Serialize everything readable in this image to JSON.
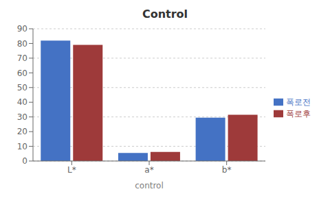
{
  "chart_data": {
    "type": "bar",
    "title": "Control",
    "xlabel": "control",
    "categories": [
      "L*",
      "a*",
      "b*"
    ],
    "series": [
      {
        "name": "폭로전",
        "color": "#4472C4",
        "values": [
          82,
          5.5,
          29.5
        ]
      },
      {
        "name": "폭로후",
        "color": "#9E3A3A",
        "values": [
          79,
          6.2,
          31.5
        ]
      }
    ],
    "ylim": [
      0,
      90
    ],
    "yticks": [
      0,
      10,
      20,
      30,
      40,
      50,
      60,
      70,
      80,
      90
    ],
    "grid": true,
    "legend": "right"
  }
}
